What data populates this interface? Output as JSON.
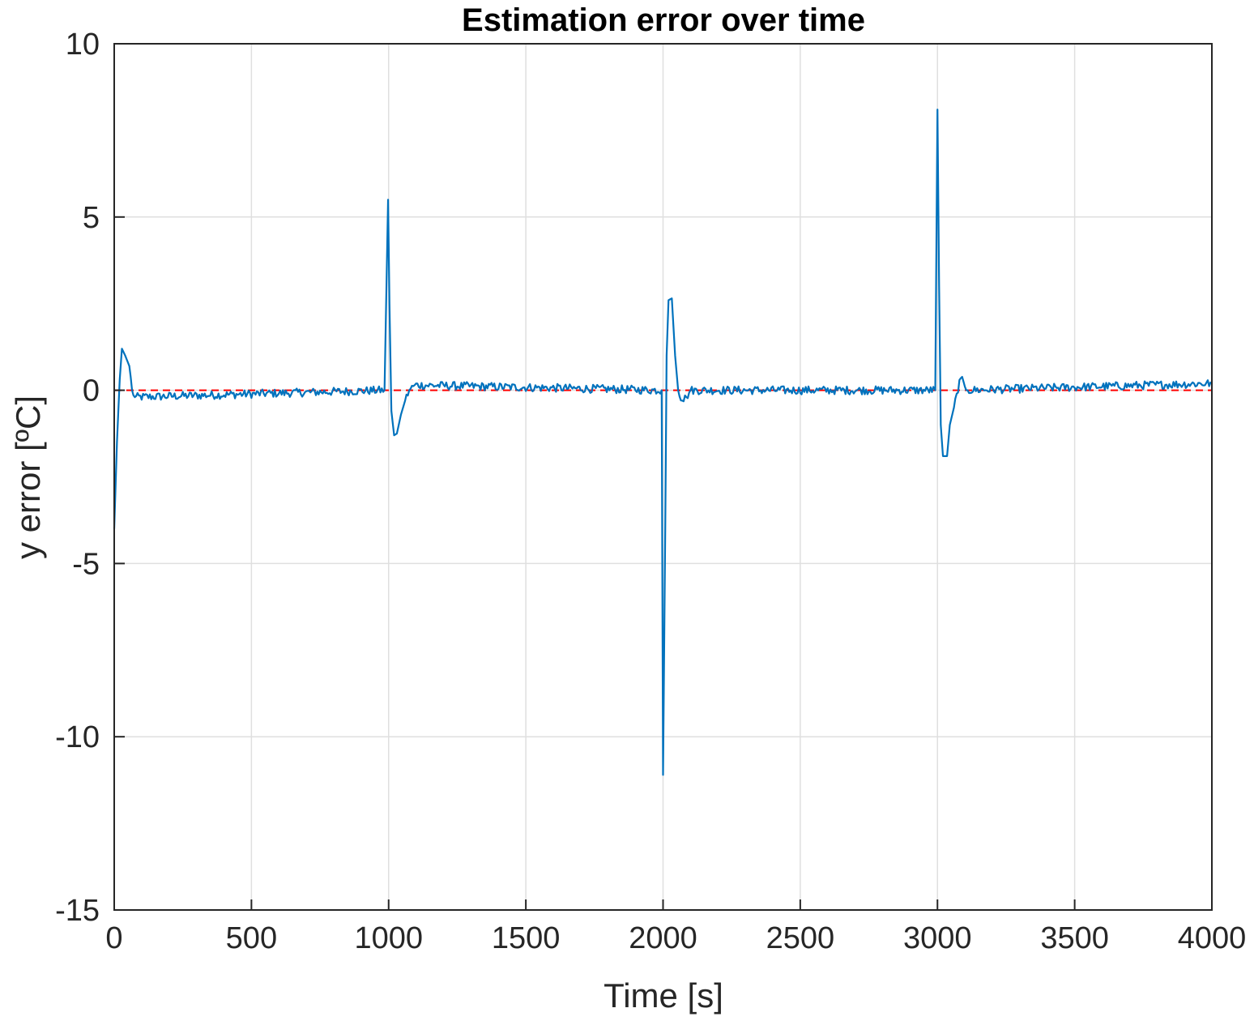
{
  "chart_data": {
    "type": "line",
    "title": "Estimation error over time",
    "xlabel": "Time [s]",
    "ylabel": "y error [ºC]",
    "xlim": [
      0,
      4000
    ],
    "ylim": [
      -15,
      10
    ],
    "xticks": [
      0,
      500,
      1000,
      1500,
      2000,
      2500,
      3000,
      3500,
      4000
    ],
    "xtick_labels": [
      "0",
      "500",
      "1000",
      "1500",
      "2000",
      "2500",
      "3000",
      "3500",
      "4000"
    ],
    "yticks": [
      -15,
      -10,
      -5,
      0,
      5,
      10
    ],
    "ytick_labels": [
      "-15",
      "-10",
      "-5",
      "0",
      "5",
      "10"
    ],
    "grid": true,
    "legend": "none",
    "series": [
      {
        "color": "#0072BD",
        "style": "solid",
        "keypoints": [
          [
            0,
            -4.0
          ],
          [
            10,
            -1.5
          ],
          [
            20,
            0.3
          ],
          [
            28,
            1.2
          ],
          [
            40,
            1.0
          ],
          [
            55,
            0.7
          ],
          [
            65,
            0.0
          ],
          [
            75,
            -0.2
          ],
          [
            985,
            0.0
          ],
          [
            998,
            5.5
          ],
          [
            1003,
            2.5
          ],
          [
            1010,
            -0.6
          ],
          [
            1020,
            -1.3
          ],
          [
            1030,
            -1.25
          ],
          [
            1045,
            -0.7
          ],
          [
            1060,
            -0.3
          ],
          [
            1075,
            0.0
          ],
          [
            1095,
            0.15
          ],
          [
            1995,
            0.0
          ],
          [
            2000,
            -11.1
          ],
          [
            2008,
            -4.0
          ],
          [
            2013,
            1.0
          ],
          [
            2020,
            2.6
          ],
          [
            2032,
            2.65
          ],
          [
            2044,
            1.0
          ],
          [
            2055,
            0.0
          ],
          [
            2070,
            -0.3
          ],
          [
            2085,
            -0.2
          ],
          [
            2100,
            0.0
          ],
          [
            2992,
            0.0
          ],
          [
            3000,
            8.1
          ],
          [
            3006,
            3.0
          ],
          [
            3012,
            -1.0
          ],
          [
            3020,
            -1.9
          ],
          [
            3035,
            -1.9
          ],
          [
            3045,
            -1.0
          ],
          [
            3060,
            -0.5
          ],
          [
            3070,
            -0.1
          ],
          [
            3085,
            0.35
          ],
          [
            3100,
            0.1
          ],
          [
            3110,
            0.0
          ],
          [
            4000,
            0.2
          ]
        ],
        "noise_amplitude": 0.12
      },
      {
        "color": "#FF0000",
        "style": "dashed",
        "x": [
          0,
          4000
        ],
        "y": [
          0,
          0
        ]
      }
    ]
  }
}
